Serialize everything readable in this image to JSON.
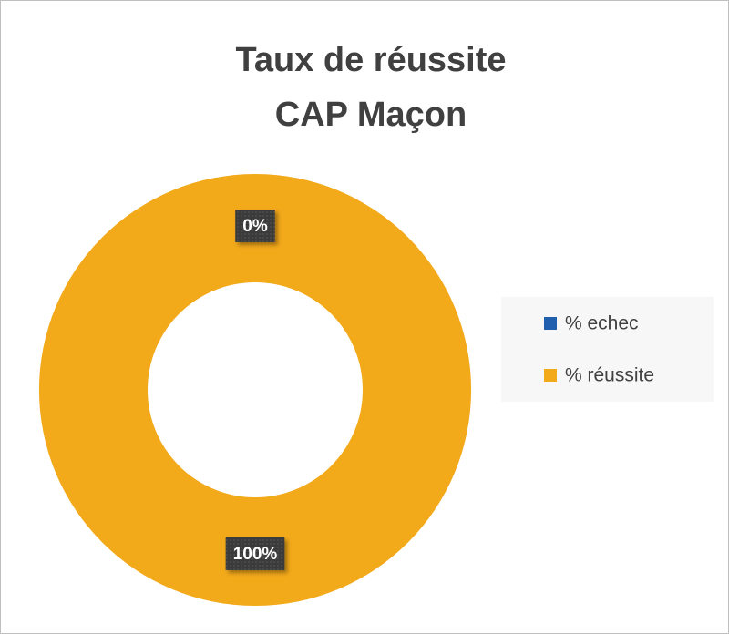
{
  "chart_data": {
    "type": "donut",
    "title": [
      "Taux de réussite",
      "CAP Maçon"
    ],
    "categories": [
      "% echec",
      "% réussite"
    ],
    "values": [
      0,
      100
    ],
    "value_labels": [
      "0%",
      "100%"
    ],
    "colors": [
      "#1f5fae",
      "#f2a91a"
    ],
    "legend": "right"
  }
}
